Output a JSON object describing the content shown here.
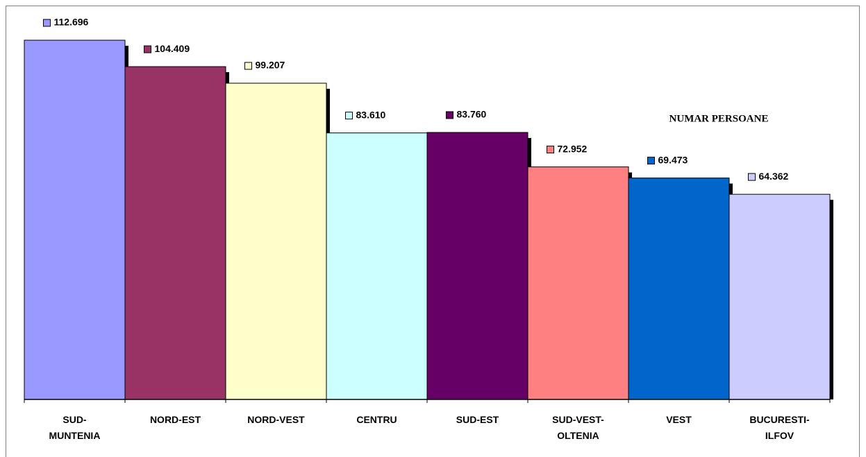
{
  "chart_data": {
    "type": "bar",
    "annotation": "NUMAR PERSOANE",
    "categories": [
      "SUD-MUNTENIA",
      "NORD-EST",
      "NORD-VEST",
      "CENTRU",
      "SUD-EST",
      "SUD-VEST-OLTENIA",
      "VEST",
      "BUCURESTI-ILFOV"
    ],
    "values": [
      112696,
      104409,
      99207,
      83610,
      83760,
      72952,
      69473,
      64362
    ],
    "value_labels": [
      "112.696",
      "104.409",
      "99.207",
      "83.610",
      "83.760",
      "72.952",
      "69.473",
      "64.362"
    ],
    "colors": [
      "#9999ff",
      "#993366",
      "#ffffcc",
      "#ccffff",
      "#660066",
      "#ff8080",
      "#0066cc",
      "#ccccff"
    ],
    "ylim": [
      0,
      120000
    ]
  }
}
